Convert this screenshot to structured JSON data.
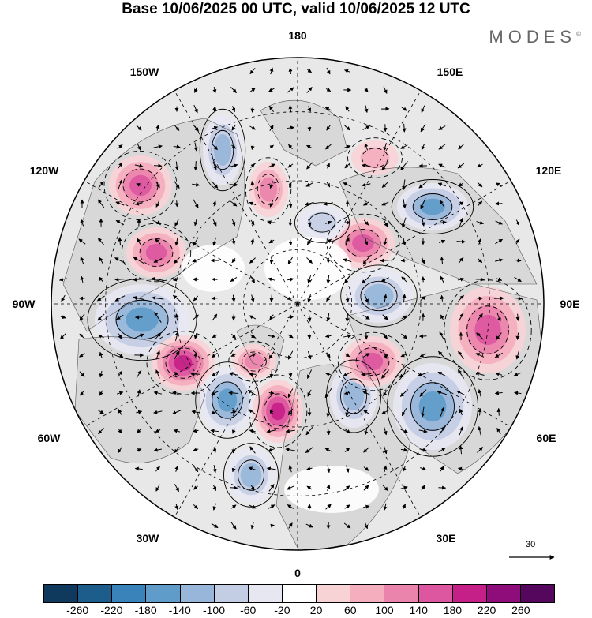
{
  "title": "Base 10/06/2025 00 UTC, valid 10/06/2025 12 UTC",
  "brand": "MODES",
  "brand_mark": "©",
  "longitude_labels": {
    "top": "180",
    "bottom": "0",
    "left": "90W",
    "right": "90E",
    "upper_left": "150W",
    "upper_right": "150E",
    "left_upper": "120W",
    "right_upper": "120E",
    "left_lower": "60W",
    "right_lower": "60E",
    "lower_left": "30W",
    "lower_right": "30E"
  },
  "reference_vector": {
    "label": "30"
  },
  "colorbar": {
    "colors": [
      "#0f3a5e",
      "#1d5d8c",
      "#3a82ba",
      "#5f9cca",
      "#97b6d9",
      "#c3cde4",
      "#e7e7f2",
      "#ffffff",
      "#f8d3d6",
      "#f4aebe",
      "#ea84ad",
      "#dc56a0",
      "#c51f88",
      "#8e0d7a",
      "#55075e"
    ],
    "ticks": [
      "-260",
      "-220",
      "-180",
      "-140",
      "-100",
      "-60",
      "-20",
      "20",
      "60",
      "100",
      "140",
      "180",
      "220",
      "260"
    ]
  },
  "colors": {
    "land_fill": "#d8d8d8",
    "ocean_fill": "#e8e8e8",
    "grid": "#000000"
  },
  "anomaly_centers": [
    {
      "name": "low-hudson-bay",
      "sign": -1,
      "strength": 4
    },
    {
      "name": "high-north-america-east",
      "sign": 1,
      "strength": 5
    },
    {
      "name": "low-north-atlantic-west",
      "sign": -1,
      "strength": 4
    },
    {
      "name": "high-north-atlantic",
      "sign": 1,
      "strength": 5
    },
    {
      "name": "low-north-atlantic-south",
      "sign": -1,
      "strength": 3
    },
    {
      "name": "high-western-europe",
      "sign": 1,
      "strength": 3
    },
    {
      "name": "low-scandinavia",
      "sign": -1,
      "strength": 3
    },
    {
      "name": "high-russia-west",
      "sign": 1,
      "strength": 4
    },
    {
      "name": "low-siberia-west",
      "sign": -1,
      "strength": 3
    },
    {
      "name": "high-central-asia",
      "sign": 1,
      "strength": 4
    },
    {
      "name": "low-siberia-central",
      "sign": -1,
      "strength": 4
    },
    {
      "name": "high-siberia-north",
      "sign": 1,
      "strength": 4
    },
    {
      "name": "low-east-asia",
      "sign": -1,
      "strength": 4
    },
    {
      "name": "high-pacific-west",
      "sign": 1,
      "strength": 2
    },
    {
      "name": "low-bering",
      "sign": -1,
      "strength": 2
    },
    {
      "name": "high-alaska",
      "sign": 1,
      "strength": 3
    },
    {
      "name": "low-pacific-east",
      "sign": -1,
      "strength": 3
    },
    {
      "name": "high-pacific-northeast",
      "sign": 1,
      "strength": 4
    },
    {
      "name": "high-canada-west",
      "sign": 1,
      "strength": 4
    }
  ]
}
